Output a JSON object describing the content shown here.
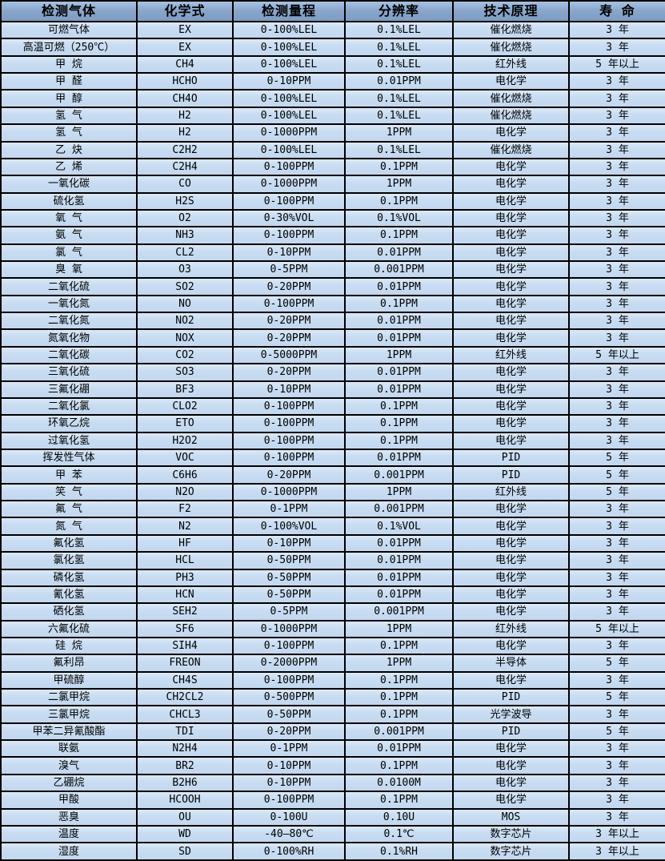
{
  "colors": {
    "header_bg": "#7E9CC2",
    "row_bg": "#C5D9F1",
    "border": "#000000",
    "text": "#000000"
  },
  "table": {
    "columns": [
      "检测气体",
      "化学式",
      "检测量程",
      "分辨率",
      "技术原理",
      "寿 命"
    ],
    "rows": [
      [
        "可燃气体",
        "EX",
        "0-100%LEL",
        "0.1%LEL",
        "催化燃烧",
        "3 年"
      ],
      [
        "高温可燃（250℃）",
        "EX",
        "0-100%LEL",
        "0.1%LEL",
        "催化燃烧",
        "3 年"
      ],
      [
        "甲 烷",
        "CH4",
        "0-100%LEL",
        "0.1%LEL",
        "红外线",
        "5 年以上"
      ],
      [
        "甲 醛",
        "HCHO",
        "0-10PPM",
        "0.01PPM",
        "电化学",
        "3 年"
      ],
      [
        "甲 醇",
        "CH4O",
        "0-100%LEL",
        "0.1%LEL",
        "催化燃烧",
        "3 年"
      ],
      [
        "氢 气",
        "H2",
        "0-100%LEL",
        "0.1%LEL",
        "催化燃烧",
        "3 年"
      ],
      [
        "氢 气",
        "H2",
        "0-1000PPM",
        "1PPM",
        "电化学",
        "3 年"
      ],
      [
        "乙 炔",
        "C2H2",
        "0-100%LEL",
        "0.1%LEL",
        "催化燃烧",
        "3 年"
      ],
      [
        "乙 烯",
        "C2H4",
        "0-100PPM",
        "0.1PPM",
        "电化学",
        "3 年"
      ],
      [
        "一氧化碳",
        "CO",
        "0-1000PPM",
        "1PPM",
        "电化学",
        "3 年"
      ],
      [
        "硫化氢",
        "H2S",
        "0-100PPM",
        "0.1PPM",
        "电化学",
        "3 年"
      ],
      [
        "氧 气",
        "O2",
        "0-30%VOL",
        "0.1%VOL",
        "电化学",
        "3 年"
      ],
      [
        "氨 气",
        "NH3",
        "0-100PPM",
        "0.1PPM",
        "电化学",
        "3 年"
      ],
      [
        "氯 气",
        "CL2",
        "0-10PPM",
        "0.01PPM",
        "电化学",
        "3 年"
      ],
      [
        "臭 氧",
        "O3",
        "0-5PPM",
        "0.001PPM",
        "电化学",
        "3 年"
      ],
      [
        "二氧化硫",
        "SO2",
        "0-20PPM",
        "0.01PPM",
        "电化学",
        "3 年"
      ],
      [
        "一氧化氮",
        "NO",
        "0-100PPM",
        "0.1PPM",
        "电化学",
        "3 年"
      ],
      [
        "二氧化氮",
        "NO2",
        "0-20PPM",
        "0.01PPM",
        "电化学",
        "3 年"
      ],
      [
        "氮氧化物",
        "NOX",
        "0-20PPM",
        "0.01PPM",
        "电化学",
        "3 年"
      ],
      [
        "二氧化碳",
        "CO2",
        "0-5000PPM",
        "1PPM",
        "红外线",
        "5 年以上"
      ],
      [
        "三氧化硫",
        "SO3",
        "0-20PPM",
        "0.01PPM",
        "电化学",
        "3 年"
      ],
      [
        "三氟化硼",
        "BF3",
        "0-10PPM",
        "0.01PPM",
        "电化学",
        "3 年"
      ],
      [
        "二氧化氯",
        "CLO2",
        "0-100PPM",
        "0.1PPM",
        "电化学",
        "3 年"
      ],
      [
        "环氧乙烷",
        "ETO",
        "0-100PPM",
        "0.1PPM",
        "电化学",
        "3 年"
      ],
      [
        "过氧化氢",
        "H2O2",
        "0-100PPM",
        "0.1PPM",
        "电化学",
        "3 年"
      ],
      [
        "挥发性气体",
        "VOC",
        "0-100PPM",
        "0.01PPM",
        "PID",
        "5 年"
      ],
      [
        "甲 苯",
        "C6H6",
        "0-20PPM",
        "0.001PPM",
        "PID",
        "5 年"
      ],
      [
        "笑 气",
        "N2O",
        "0-1000PPM",
        "1PPM",
        "红外线",
        "5 年"
      ],
      [
        "氟 气",
        "F2",
        "0-1PPM",
        "0.001PPM",
        "电化学",
        "3 年"
      ],
      [
        "氮 气",
        "N2",
        "0-100%VOL",
        "0.1%VOL",
        "电化学",
        "3 年"
      ],
      [
        "氟化氢",
        "HF",
        "0-10PPM",
        "0.01PPM",
        "电化学",
        "3 年"
      ],
      [
        "氯化氢",
        "HCL",
        "0-50PPM",
        "0.01PPM",
        "电化学",
        "3 年"
      ],
      [
        "磷化氢",
        "PH3",
        "0-50PPM",
        "0.01PPM",
        "电化学",
        "3 年"
      ],
      [
        "氰化氢",
        "HCN",
        "0-50PPM",
        "0.01PPM",
        "电化学",
        "3 年"
      ],
      [
        "硒化氢",
        "SEH2",
        "0-5PPM",
        "0.001PPM",
        "电化学",
        "3 年"
      ],
      [
        "六氟化硫",
        "SF6",
        "0-1000PPM",
        "1PPM",
        "红外线",
        "5 年以上"
      ],
      [
        "硅 烷",
        "SIH4",
        "0-100PPM",
        "0.1PPM",
        "电化学",
        "3 年"
      ],
      [
        "氟利昂",
        "FREON",
        "0-2000PPM",
        "1PPM",
        "半导体",
        "5 年"
      ],
      [
        "甲硫醇",
        "CH4S",
        "0-100PPM",
        "0.1PPM",
        "电化学",
        "3 年"
      ],
      [
        "二氯甲烷",
        "CH2CL2",
        "0-500PPM",
        "0.1PPM",
        "PID",
        "5 年"
      ],
      [
        "三氯甲烷",
        "CHCL3",
        "0-50PPM",
        "0.1PPM",
        "光学波导",
        "3 年"
      ],
      [
        "甲苯二异氰酸酯",
        "TDI",
        "0-20PPM",
        "0.001PPM",
        "PID",
        "5 年"
      ],
      [
        "联氨",
        "N2H4",
        "0-1PPM",
        "0.01PPM",
        "电化学",
        "3 年"
      ],
      [
        "溴气",
        "BR2",
        "0-10PPM",
        "0.1PPM",
        "电化学",
        "3 年"
      ],
      [
        "乙硼烷",
        "B2H6",
        "0-10PPM",
        "0.0100M",
        "电化学",
        "3 年"
      ],
      [
        "甲酸",
        "HCOOH",
        "0-100PPM",
        "0.1PPM",
        "电化学",
        "3 年"
      ],
      [
        "恶臭",
        "OU",
        "0-100U",
        "0.10U",
        "MOS",
        "3 年"
      ],
      [
        "温度",
        "WD",
        "-40—80℃",
        "0.1℃",
        "数字芯片",
        "3 年以上"
      ],
      [
        "湿度",
        "SD",
        "0-100%RH",
        "0.1%RH",
        "数字芯片",
        "3 年以上"
      ]
    ]
  }
}
